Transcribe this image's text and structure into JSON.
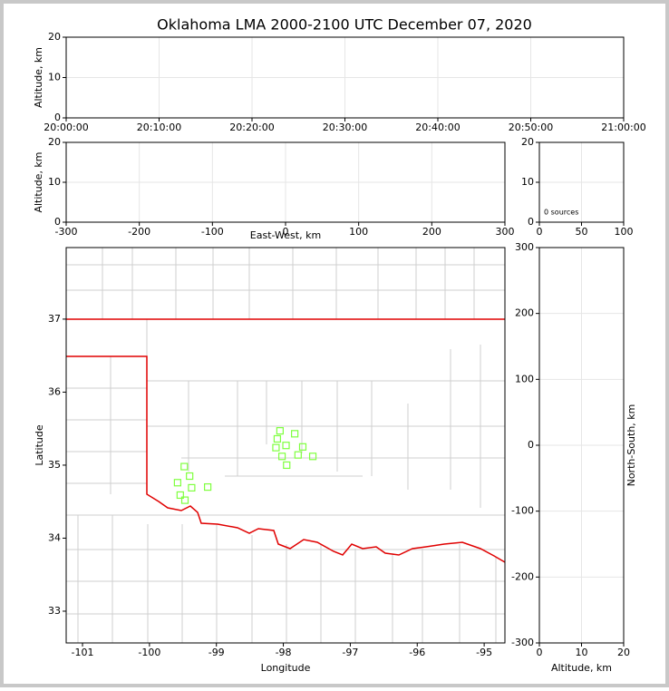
{
  "chart_data": [
    {
      "type": "line",
      "title": "Oklahoma LMA 2000-2100 UTC December 07, 2020",
      "ylabel": "Altitude, km",
      "xlim": [
        0,
        60
      ],
      "xticks": [
        {
          "value": 0,
          "label": "20:00:00"
        },
        {
          "value": 10,
          "label": "20:10:00"
        },
        {
          "value": 20,
          "label": "20:20:00"
        },
        {
          "value": 30,
          "label": "20:30:00"
        },
        {
          "value": 40,
          "label": "20:40:00"
        },
        {
          "value": 50,
          "label": "20:50:00"
        },
        {
          "value": 60,
          "label": "21:00:00"
        }
      ],
      "ylim": [
        0,
        20
      ],
      "yticks": [
        0,
        10,
        20
      ],
      "grid": true
    },
    {
      "type": "line",
      "xlabel": "East-West, km",
      "ylabel": "Altitude, km",
      "xlim": [
        -300,
        300
      ],
      "xticks": [
        -300,
        -200,
        -100,
        0,
        100,
        200,
        300
      ],
      "ylim": [
        0,
        20
      ],
      "yticks": [
        0,
        10,
        20
      ],
      "grid": true
    },
    {
      "type": "histogram",
      "annotation": "0 sources",
      "xlim": [
        0,
        100
      ],
      "xticks": [
        0,
        50,
        100
      ],
      "ylim": [
        0,
        20
      ],
      "yticks": [
        0,
        10,
        20
      ],
      "grid": true
    },
    {
      "type": "scatter",
      "xlabel": "Longitude",
      "ylabel": "Latitude",
      "xlim": [
        -101.244,
        -94.69
      ],
      "xticks": [
        -101,
        -100,
        -99,
        -98,
        -97,
        -96,
        -95
      ],
      "ylim": [
        32.565,
        37.98
      ],
      "yticks": [
        33,
        34,
        35,
        36,
        37
      ],
      "grid": false,
      "color": "#7fff3f",
      "x": [
        -99.48,
        -99.4,
        -99.58,
        -99.37,
        -99.54,
        -99.47,
        -99.13,
        -98.05,
        -97.83,
        -98.09,
        -97.96,
        -98.11,
        -97.71,
        -98.02,
        -97.78,
        -97.56,
        -97.95
      ],
      "values": [
        34.98,
        34.85,
        34.76,
        34.69,
        34.59,
        34.52,
        34.7,
        35.47,
        35.43,
        35.36,
        35.27,
        35.24,
        35.25,
        35.12,
        35.14,
        35.12,
        35.0
      ]
    },
    {
      "type": "line",
      "xlabel": "Altitude, km",
      "ylabel": "North-South, km",
      "xlim": [
        0,
        20
      ],
      "xticks": [
        0,
        10,
        20
      ],
      "ylim": [
        -300,
        300
      ],
      "yticks": [
        -300,
        -200,
        -100,
        0,
        100,
        200,
        300
      ],
      "grid": true
    }
  ]
}
